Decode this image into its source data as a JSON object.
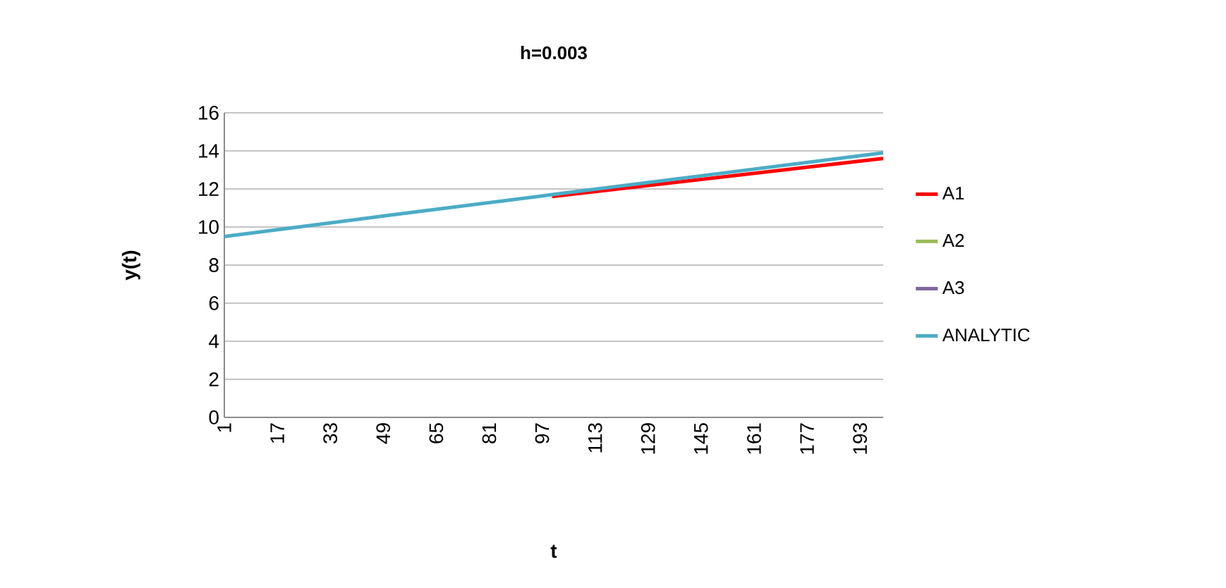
{
  "chart_data": {
    "type": "line",
    "title": "h=0.003",
    "xlabel": "t",
    "ylabel": "y(t)",
    "xlim": [
      1,
      200
    ],
    "xticks": [
      1,
      17,
      33,
      49,
      65,
      81,
      97,
      113,
      129,
      145,
      161,
      177,
      193
    ],
    "ylim": [
      0,
      16
    ],
    "yticks": [
      0,
      2,
      4,
      6,
      8,
      10,
      12,
      14,
      16
    ],
    "grid": "y",
    "legend": "right",
    "marker": "none",
    "line_style": "solid",
    "x": [
      1,
      50,
      100,
      150,
      200
    ],
    "series": [
      {
        "name": "A1",
        "color": "#ff0000",
        "values": [
          null,
          null,
          11.6,
          12.6,
          13.6
        ]
      },
      {
        "name": "A2",
        "color": "#9bbb59",
        "values": [
          null,
          null,
          null,
          null,
          null
        ]
      },
      {
        "name": "A3",
        "color": "#8064a2",
        "values": [
          null,
          null,
          null,
          null,
          null
        ]
      },
      {
        "name": "ANALYTIC",
        "color": "#4bacc6",
        "values": [
          9.5,
          10.6,
          11.7,
          12.8,
          13.9
        ]
      }
    ]
  }
}
